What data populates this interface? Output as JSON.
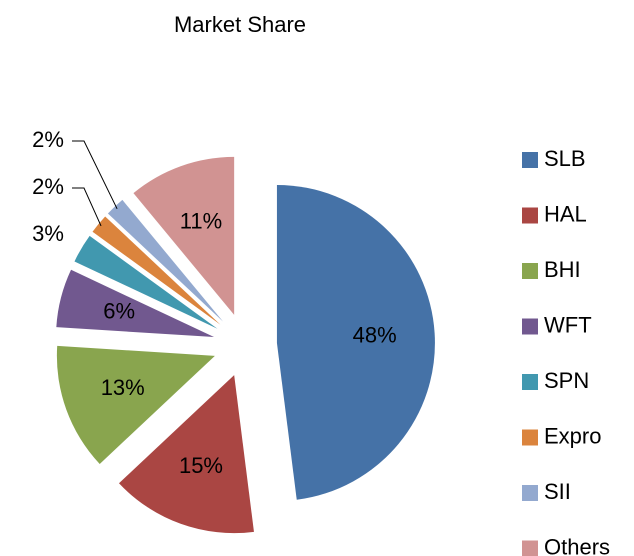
{
  "chart_data": {
    "type": "pie",
    "title": "Market Share",
    "categories": [
      "SLB",
      "HAL",
      "BHI",
      "WFT",
      "SPN",
      "Expro",
      "SII",
      "Others"
    ],
    "values": [
      48,
      15,
      13,
      6,
      3,
      2,
      2,
      11
    ],
    "value_labels": [
      "48%",
      "15%",
      "13%",
      "6%",
      "3%",
      "2%",
      "2%",
      "11%"
    ],
    "colors": [
      "#4572a7",
      "#aa4643",
      "#89a54e",
      "#71588f",
      "#4198af",
      "#db843d",
      "#93a9cf",
      "#d19392"
    ],
    "legend": "right",
    "exploded": true
  }
}
